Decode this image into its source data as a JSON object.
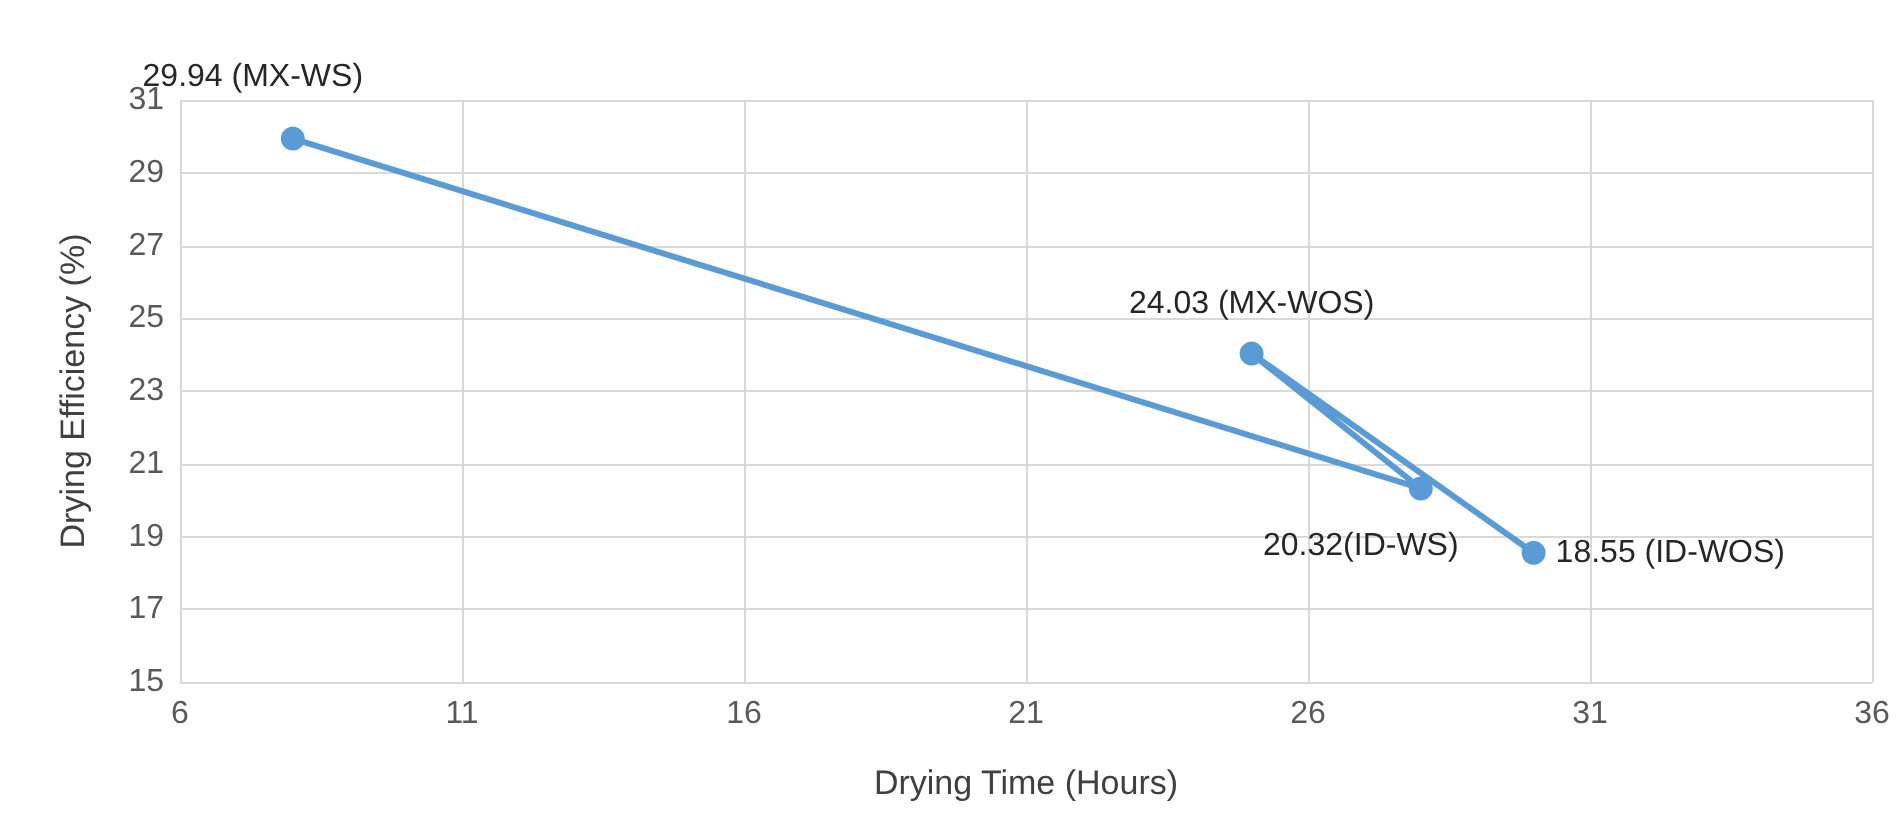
{
  "chart_data": {
    "type": "line",
    "xlabel": "Drying Time (Hours)",
    "ylabel": "Drying Efficiency (%)",
    "x": [
      8,
      28,
      25,
      30
    ],
    "series": [
      {
        "color": "#5b9bd5",
        "values": [
          29.94,
          20.32,
          24.03,
          18.55
        ],
        "value_labels": [
          "29.94 (MX-WS)",
          "20.32(ID-WS)",
          "24.03 (MX-WOS)",
          "18.55 (ID-WOS)"
        ]
      }
    ],
    "xlim": [
      6,
      36
    ],
    "xticks": [
      6,
      11,
      16,
      21,
      26,
      31,
      36
    ],
    "ylim": [
      15,
      31
    ],
    "yticks": [
      15,
      17,
      19,
      21,
      23,
      25,
      27,
      29,
      31
    ],
    "grid": true,
    "marker": "circle",
    "line_style": "solid"
  }
}
